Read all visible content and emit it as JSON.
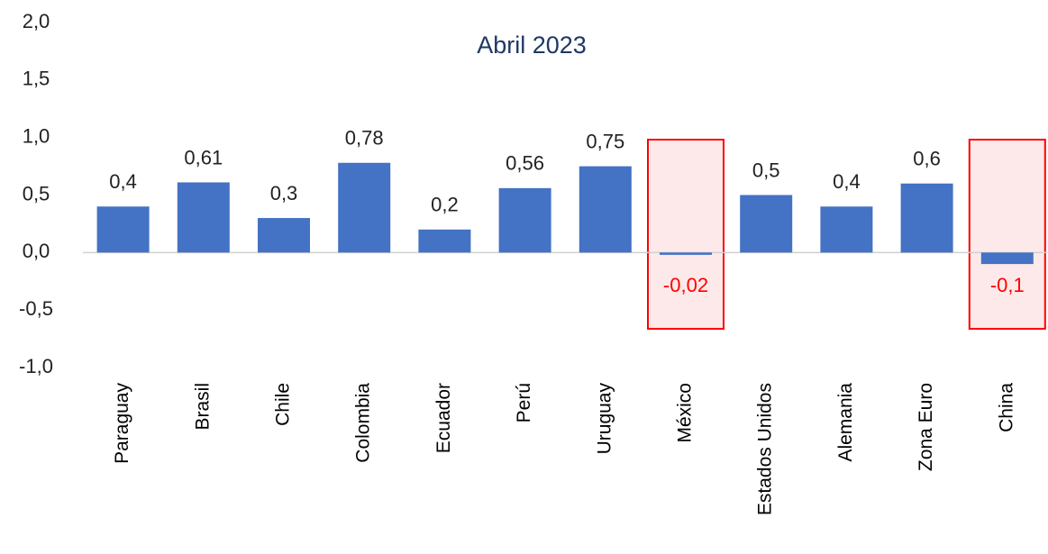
{
  "chart_data": {
    "type": "bar",
    "title": "Abril 2023",
    "categories": [
      "Paraguay",
      "Brasil",
      "Chile",
      "Colombia",
      "Ecuador",
      "Perú",
      "Uruguay",
      "México",
      "Estados Unidos",
      "Alemania",
      "Zona Euro",
      "China"
    ],
    "values": [
      0.4,
      0.61,
      0.3,
      0.78,
      0.2,
      0.56,
      0.75,
      -0.02,
      0.5,
      0.4,
      0.6,
      -0.1
    ],
    "value_labels": [
      "0,4",
      "0,61",
      "0,3",
      "0,78",
      "0,2",
      "0,56",
      "0,75",
      "-0,02",
      "0,5",
      "0,4",
      "0,6",
      "-0,1"
    ],
    "color": "#4472c4",
    "negative_label_color": "#ff0000",
    "highlight_color": "#ff0000",
    "ylim": [
      -1.0,
      2.0
    ],
    "yticks": [
      {
        "value": -1.0,
        "label": "-1,0"
      },
      {
        "value": -0.5,
        "label": "-0,5"
      },
      {
        "value": 0.0,
        "label": "0,0"
      },
      {
        "value": 0.5,
        "label": "0,5"
      },
      {
        "value": 1.0,
        "label": "1,0"
      },
      {
        "value": 1.5,
        "label": "1,5"
      },
      {
        "value": 2.0,
        "label": "2,0"
      }
    ],
    "grid": false
  }
}
